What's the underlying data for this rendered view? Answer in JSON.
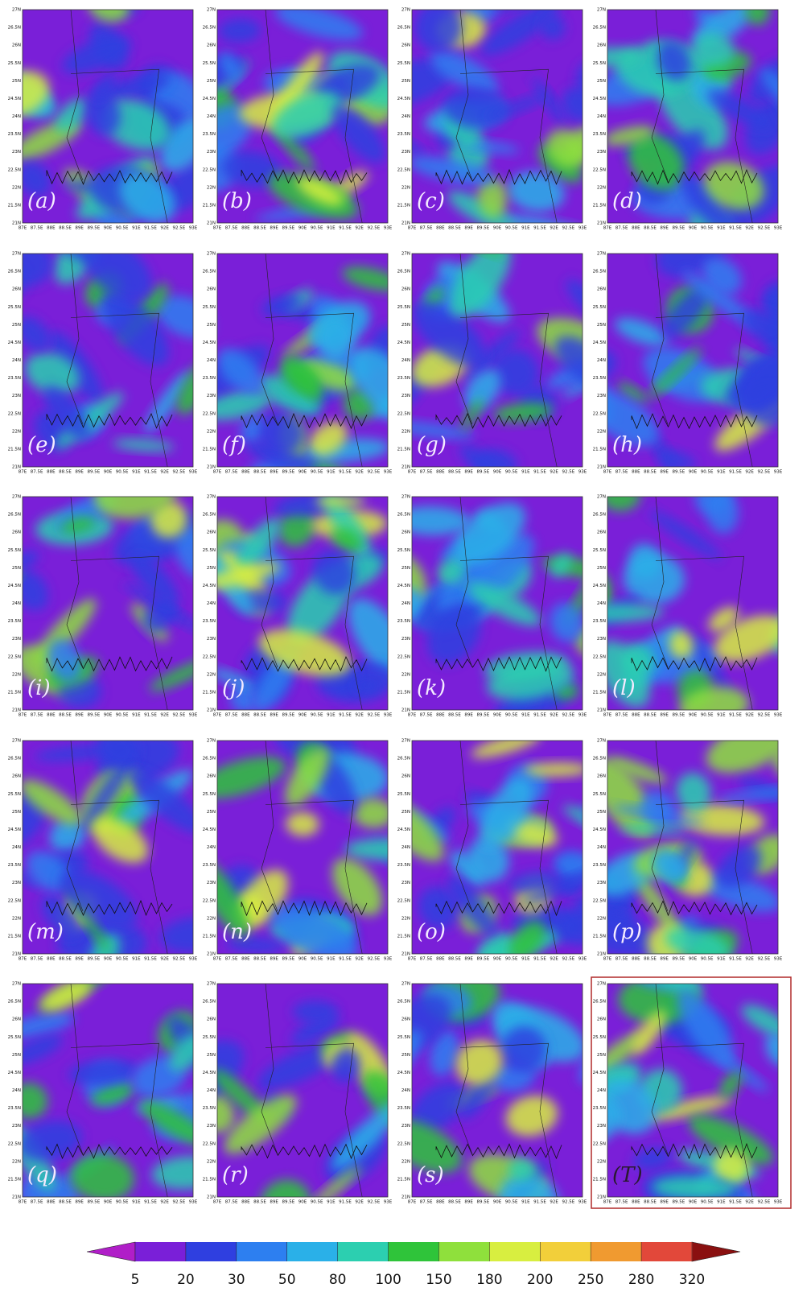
{
  "panels": [
    {
      "label": "(a)"
    },
    {
      "label": "(b)"
    },
    {
      "label": "(c)"
    },
    {
      "label": "(d)"
    },
    {
      "label": "(e)"
    },
    {
      "label": "(f)"
    },
    {
      "label": "(g)"
    },
    {
      "label": "(h)"
    },
    {
      "label": "(i)"
    },
    {
      "label": "(j)"
    },
    {
      "label": "(k)"
    },
    {
      "label": "(l)"
    },
    {
      "label": "(m)"
    },
    {
      "label": "(n)"
    },
    {
      "label": "(o)"
    },
    {
      "label": "(p)"
    },
    {
      "label": "(q)"
    },
    {
      "label": "(r)"
    },
    {
      "label": "(s)"
    },
    {
      "label": "(T)"
    }
  ],
  "y_ticks": [
    "27N",
    "26.5N",
    "26N",
    "25.5N",
    "25N",
    "24.5N",
    "24N",
    "23.5N",
    "23N",
    "22.5N",
    "22N",
    "21.5N",
    "21N"
  ],
  "x_ticks": [
    "87E",
    "87.5E",
    "88E",
    "88.5E",
    "89E",
    "89.5E",
    "90E",
    "90.5E",
    "91E",
    "91.5E",
    "92E",
    "92.5E",
    "93E"
  ],
  "colorbar": {
    "ticks": [
      5,
      20,
      30,
      50,
      80,
      100,
      150,
      180,
      200,
      250,
      280,
      320
    ],
    "colors": [
      "#b01ec8",
      "#7a1fd8",
      "#2f3fe0",
      "#2d7ff0",
      "#2ab0e8",
      "#2ccfb0",
      "#2fc43a",
      "#8fe03c",
      "#d8ee40",
      "#f2cf3a",
      "#f09a30",
      "#e2483a",
      "#8a1010"
    ]
  }
}
